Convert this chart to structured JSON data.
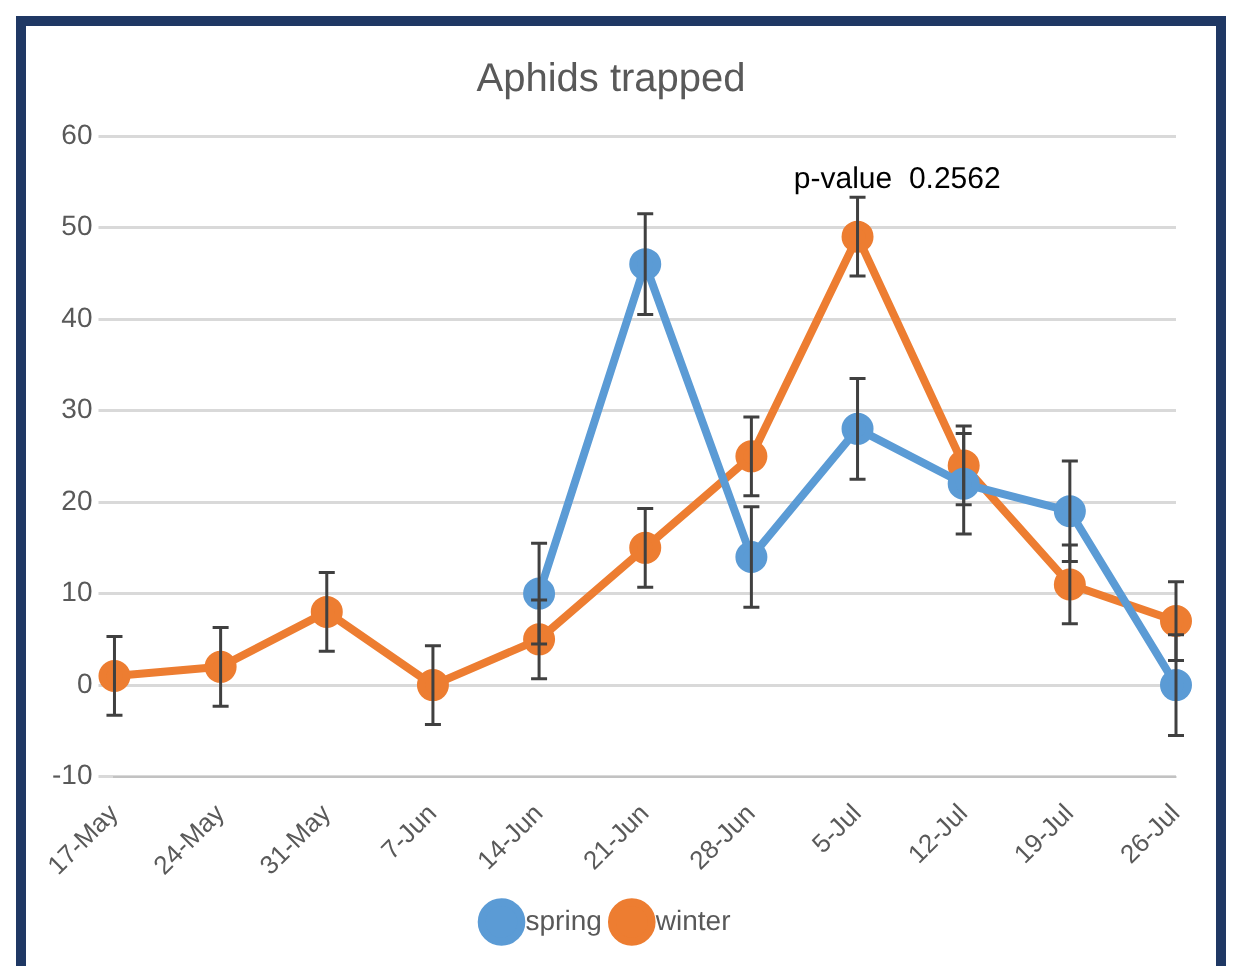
{
  "chart_data": {
    "type": "line",
    "title": "Aphids trapped",
    "categories": [
      "17-May",
      "24-May",
      "31-May",
      "7-Jun",
      "14-Jun",
      "21-Jun",
      "28-Jun",
      "5-Jul",
      "12-Jul",
      "19-Jul",
      "26-Jul"
    ],
    "series": [
      {
        "name": "spring",
        "color": "#5b9bd5",
        "values": [
          null,
          null,
          null,
          null,
          10,
          46,
          14,
          28,
          22,
          19,
          0
        ],
        "errors": [
          null,
          null,
          null,
          null,
          5.5,
          5.5,
          5.5,
          5.5,
          5.5,
          5.5,
          5.5
        ]
      },
      {
        "name": "winter",
        "color": "#ed7d31",
        "values": [
          1,
          2,
          8,
          0,
          5,
          15,
          25,
          49,
          24,
          11,
          7
        ],
        "errors": [
          4.3,
          4.3,
          4.3,
          4.3,
          4.3,
          4.3,
          4.3,
          4.3,
          4.3,
          4.3,
          4.3
        ]
      }
    ],
    "ylim": [
      -10,
      60
    ],
    "yticks": [
      -10,
      0,
      10,
      20,
      30,
      40,
      50,
      60
    ],
    "grid": "y",
    "legend": "bottom",
    "marker": "circle",
    "line_style": "solid",
    "annotations": [
      "p-value  0.2562"
    ]
  }
}
